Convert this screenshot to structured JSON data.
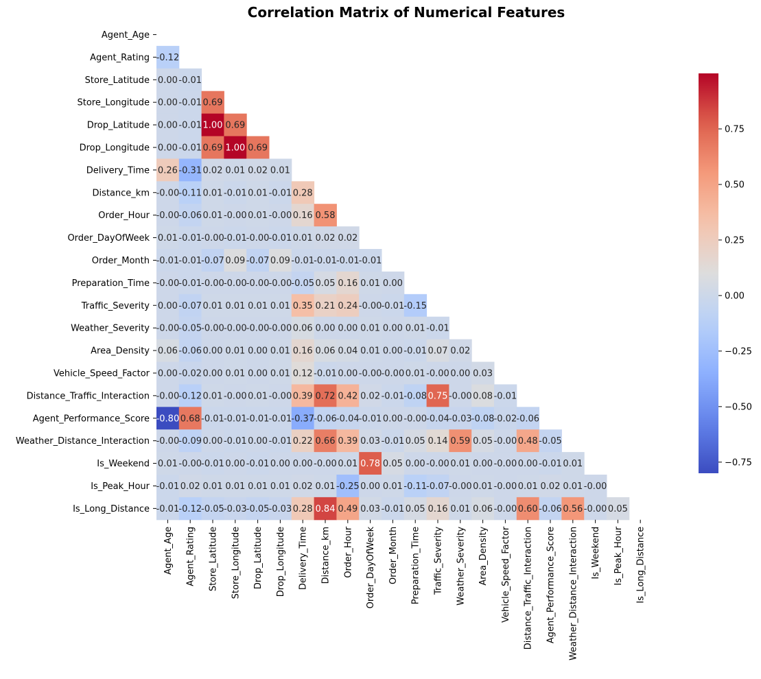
{
  "chart_data": {
    "type": "heatmap",
    "title": "Correlation Matrix of Numerical Features",
    "labels": [
      "Agent_Age",
      "Agent_Rating",
      "Store_Latitude",
      "Store_Longitude",
      "Drop_Latitude",
      "Drop_Longitude",
      "Delivery_Time",
      "Distance_km",
      "Order_Hour",
      "Order_DayOfWeek",
      "Order_Month",
      "Preparation_Time",
      "Traffic_Severity",
      "Weather_Severity",
      "Area_Density",
      "Vehicle_Speed_Factor",
      "Distance_Traffic_Interaction",
      "Agent_Performance_Score",
      "Weather_Distance_Interaction",
      "Is_Weekend",
      "Is_Peak_Hour",
      "Is_Long_Distance"
    ],
    "mask": "upper-triangle",
    "colormap": "coolwarm",
    "vmin": -0.8,
    "vmax": 1.0,
    "lower_triangle_text": [
      [],
      [
        "-0.12"
      ],
      [
        "0.00",
        "-0.01"
      ],
      [
        "0.00",
        "-0.01",
        "0.69"
      ],
      [
        "0.00",
        "-0.01",
        "1.00",
        "0.69"
      ],
      [
        "0.00",
        "-0.01",
        "0.69",
        "1.00",
        "0.69"
      ],
      [
        "0.26",
        "-0.31",
        "0.02",
        "0.01",
        "0.02",
        "0.01"
      ],
      [
        "-0.00",
        "-0.11",
        "0.01",
        "-0.01",
        "0.01",
        "-0.01",
        "0.28"
      ],
      [
        "-0.00",
        "-0.06",
        "0.01",
        "-0.00",
        "0.01",
        "-0.00",
        "0.16",
        "0.58"
      ],
      [
        "0.01",
        "-0.01",
        "-0.00",
        "-0.01",
        "-0.00",
        "-0.01",
        "0.01",
        "0.02",
        "0.02"
      ],
      [
        "-0.01",
        "-0.01",
        "-0.07",
        "0.09",
        "-0.07",
        "0.09",
        "-0.01",
        "-0.01",
        "-0.01",
        "-0.01"
      ],
      [
        "-0.00",
        "-0.01",
        "-0.00",
        "-0.00",
        "-0.00",
        "-0.00",
        "-0.05",
        "0.05",
        "0.16",
        "0.01",
        "0.00"
      ],
      [
        "0.00",
        "-0.07",
        "0.01",
        "0.01",
        "0.01",
        "0.01",
        "0.35",
        "0.21",
        "0.24",
        "-0.00",
        "-0.01",
        "-0.15"
      ],
      [
        "-0.00",
        "-0.05",
        "-0.00",
        "-0.00",
        "-0.00",
        "-0.00",
        "0.06",
        "0.00",
        "0.00",
        "0.01",
        "0.00",
        "0.01",
        "-0.01"
      ],
      [
        "0.06",
        "-0.06",
        "0.00",
        "0.01",
        "0.00",
        "0.01",
        "0.16",
        "0.06",
        "0.04",
        "0.01",
        "0.00",
        "-0.01",
        "0.07",
        "0.02"
      ],
      [
        "0.00",
        "-0.02",
        "0.00",
        "0.01",
        "0.00",
        "0.01",
        "0.12",
        "-0.01",
        "0.00",
        "-0.00",
        "-0.00",
        "0.01",
        "-0.00",
        "0.00",
        "0.03"
      ],
      [
        "-0.00",
        "-0.12",
        "0.01",
        "-0.00",
        "0.01",
        "-0.00",
        "0.39",
        "0.72",
        "0.42",
        "0.02",
        "-0.01",
        "-0.08",
        "0.75",
        "-0.00",
        "0.08",
        "-0.01"
      ],
      [
        "-0.80",
        "0.68",
        "-0.01",
        "-0.01",
        "-0.01",
        "-0.01",
        "-0.37",
        "-0.06",
        "-0.04",
        "-0.01",
        "0.00",
        "-0.00",
        "-0.04",
        "-0.03",
        "-0.08",
        "-0.02",
        "-0.06"
      ],
      [
        "-0.00",
        "-0.09",
        "0.00",
        "-0.01",
        "0.00",
        "-0.01",
        "0.22",
        "0.66",
        "0.39",
        "0.03",
        "-0.01",
        "0.05",
        "0.14",
        "0.59",
        "0.05",
        "-0.00",
        "0.48",
        "-0.05"
      ],
      [
        "0.01",
        "-0.00",
        "-0.01",
        "0.00",
        "-0.01",
        "0.00",
        "0.00",
        "-0.00",
        "0.01",
        "0.78",
        "0.05",
        "0.00",
        "-0.00",
        "0.01",
        "0.00",
        "-0.00",
        "0.00",
        "-0.01",
        "0.01"
      ],
      [
        "-0.01",
        "0.02",
        "0.01",
        "0.01",
        "0.01",
        "0.01",
        "0.02",
        "0.01",
        "-0.25",
        "0.00",
        "0.01",
        "-0.11",
        "-0.07",
        "-0.00",
        "0.01",
        "-0.00",
        "0.01",
        "0.02",
        "0.01",
        "-0.00"
      ],
      [
        "-0.01",
        "-0.12",
        "-0.05",
        "-0.03",
        "-0.05",
        "-0.03",
        "0.28",
        "0.84",
        "0.49",
        "0.03",
        "-0.01",
        "0.05",
        "0.16",
        "0.01",
        "0.06",
        "-0.00",
        "0.60",
        "-0.06",
        "0.56",
        "-0.00",
        "0.05"
      ]
    ],
    "colorbar_ticks": [
      0.75,
      0.5,
      0.25,
      0.0,
      -0.25,
      -0.5,
      -0.75
    ],
    "colorbar_tick_labels": [
      "0.75",
      "0.50",
      "0.25",
      "0.00",
      "−0.25",
      "−0.50",
      "−0.75"
    ]
  }
}
